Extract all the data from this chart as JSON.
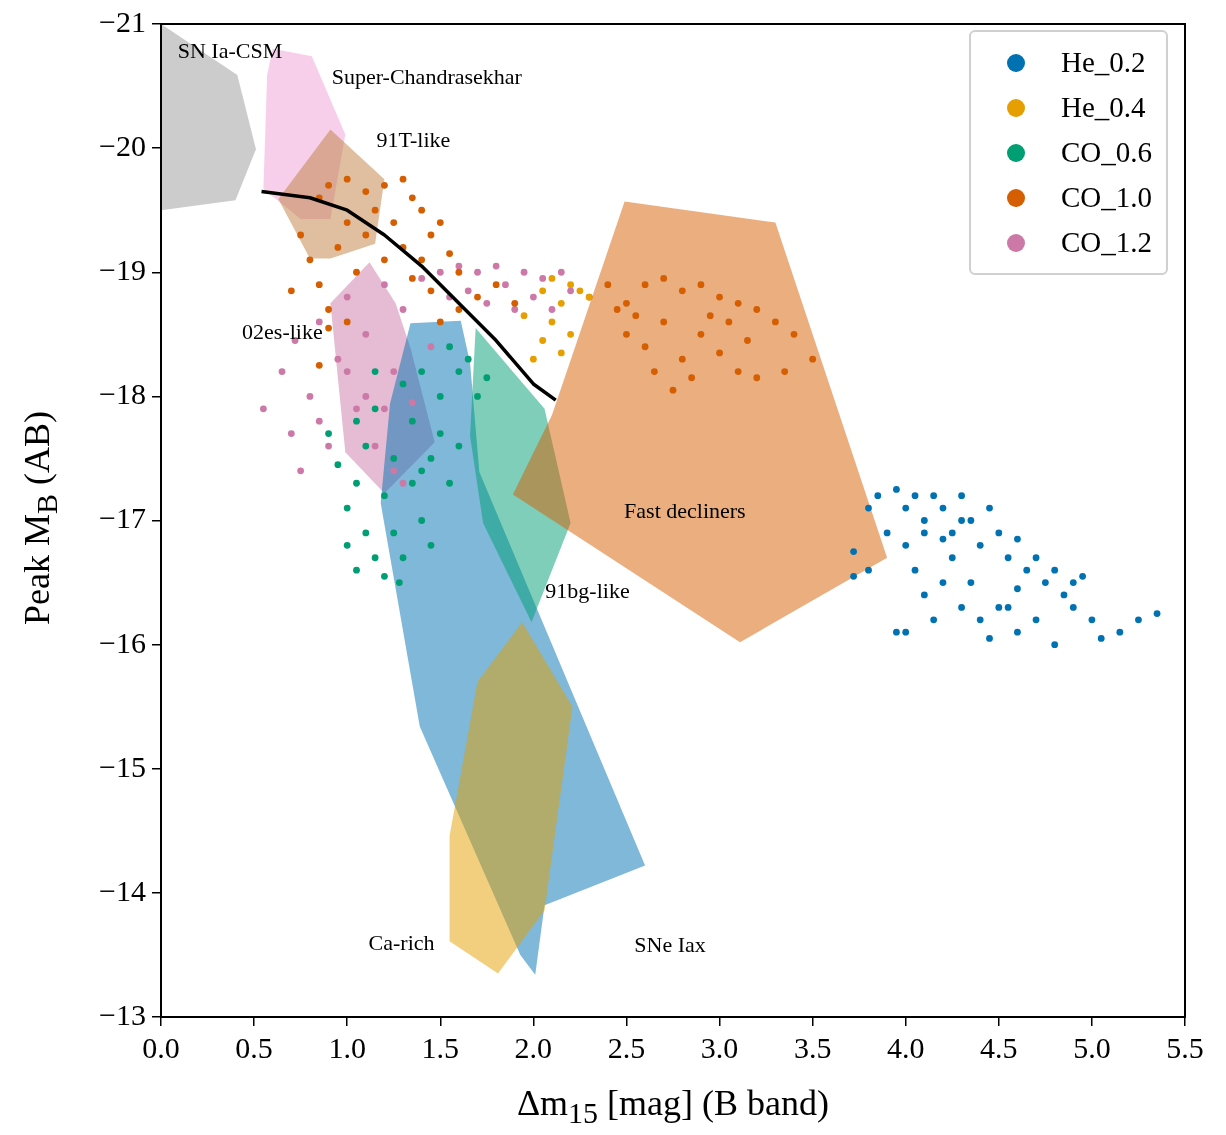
{
  "chart_data": {
    "type": "scatter",
    "xlabel": "Δm$_{15}$ [mag] (B band)",
    "ylabel": "Peak M$_{B}$ (AB)",
    "xlim": [
      0,
      5.5
    ],
    "xticks": [
      {
        "value": 0,
        "label": "0.0"
      },
      {
        "value": 0.5,
        "label": "0.5"
      },
      {
        "value": 1,
        "label": "1.0"
      },
      {
        "value": 1.5,
        "label": "1.5"
      },
      {
        "value": 2,
        "label": "2.0"
      },
      {
        "value": 2.5,
        "label": "2.5"
      },
      {
        "value": 3,
        "label": "3.0"
      },
      {
        "value": 3.5,
        "label": "3.5"
      },
      {
        "value": 4,
        "label": "4.0"
      },
      {
        "value": 4.5,
        "label": "4.5"
      },
      {
        "value": 5,
        "label": "5.0"
      },
      {
        "value": 5.5,
        "label": "5.5"
      }
    ],
    "ylim": [
      -13,
      -21
    ],
    "yticks": [
      {
        "value": -21,
        "label": "−21"
      },
      {
        "value": -20,
        "label": "−20"
      },
      {
        "value": -19,
        "label": "−19"
      },
      {
        "value": -18,
        "label": "−18"
      },
      {
        "value": -17,
        "label": "−17"
      },
      {
        "value": -16,
        "label": "−16"
      },
      {
        "value": -15,
        "label": "−15"
      },
      {
        "value": -14,
        "label": "−14"
      },
      {
        "value": -13,
        "label": "−13"
      }
    ],
    "legend": "top right",
    "marker": "circle",
    "line_style": "solid",
    "series": [
      {
        "name": "SN Ia-CSM",
        "type": "area",
        "marker": "none",
        "color": "#999999",
        "x": [
          0,
          0.41,
          0.51,
          0.4,
          0
        ],
        "values": [
          -21,
          -20.59,
          -19.99,
          -19.58,
          -19.5
        ]
      },
      {
        "name": "Super-Chandrasekhar",
        "type": "area",
        "marker": "none",
        "color": "#f0a0d8",
        "x": [
          0.6,
          0.81,
          0.99,
          0.91,
          0.75,
          0.55,
          0.57
        ],
        "values": [
          -20.8,
          -20.74,
          -20.11,
          -19.43,
          -19.43,
          -19.67,
          -20.59
        ]
      },
      {
        "name": "91T-like",
        "type": "area",
        "marker": "none",
        "color": "#c08040",
        "x": [
          0.91,
          1.2,
          1.15,
          0.91,
          0.8,
          0.63
        ],
        "values": [
          -20.15,
          -19.75,
          -19.23,
          -19.11,
          -19.11,
          -19.59
        ]
      },
      {
        "name": "02es-like",
        "type": "area",
        "marker": "none",
        "color": "#cc79a7",
        "x": [
          1.12,
          1.26,
          1.34,
          1.47,
          1.2,
          0.99,
          0.91
        ],
        "values": [
          -19.08,
          -18.75,
          -18.39,
          -17.63,
          -17.22,
          -17.55,
          -18.75
        ]
      },
      {
        "name": "SNe Iax",
        "type": "area",
        "marker": "none",
        "color": "#0072b2",
        "x": [
          1.34,
          1.61,
          1.66,
          1.71,
          2.6,
          2.06,
          2.01,
          1.93,
          1.39,
          1.18,
          1.23
        ],
        "values": [
          -18.59,
          -18.61,
          -18.27,
          -17.39,
          -14.22,
          -13.9,
          -13.34,
          -13.5,
          -15.34,
          -17.14,
          -17.94
        ]
      },
      {
        "name": "91bg-like",
        "type": "area",
        "marker": "none",
        "color": "#009e73",
        "x": [
          1.69,
          2.06,
          2.2,
          1.99,
          1.73,
          1.66
        ],
        "values": [
          -18.55,
          -17.9,
          -16.98,
          -16.18,
          -16.98,
          -17.68
        ]
      },
      {
        "name": "Fast decliners",
        "type": "area",
        "marker": "none",
        "color": "#d55e00",
        "x": [
          2.49,
          3.3,
          3.9,
          3.11,
          1.89,
          2.1
        ],
        "values": [
          -19.57,
          -19.4,
          -16.7,
          -16.02,
          -17.21,
          -17.85
        ]
      },
      {
        "name": "Ca-rich",
        "type": "area",
        "marker": "none",
        "color": "#e69f00",
        "x": [
          1.94,
          2.21,
          2.06,
          1.81,
          1.55,
          1.55,
          1.7
        ],
        "values": [
          -16.18,
          -15.5,
          -13.86,
          -13.35,
          -13.61,
          -14.46,
          -15.7
        ]
      },
      {
        "name": "He_0.2",
        "color": "#0072b2",
        "x": [
          3.85,
          3.95,
          4.0,
          4.05,
          4.1,
          4.15,
          4.2,
          4.25,
          4.3,
          4.35,
          4.4,
          4.45,
          4.5,
          4.55,
          4.6,
          4.65,
          4.7,
          4.75,
          4.8,
          4.85,
          4.9,
          4.95,
          5.0,
          5.05,
          5.15,
          5.25,
          5.35,
          4.0,
          4.05,
          4.1,
          4.15,
          4.2,
          4.25,
          4.3,
          4.35,
          4.4,
          4.45,
          4.5,
          4.6,
          4.7,
          4.8,
          3.9,
          3.8,
          3.95,
          4.0,
          4.3,
          4.2,
          4.1,
          3.72,
          3.72,
          3.8,
          4.6,
          4.9,
          4.55
        ],
        "values": [
          -17.2,
          -17.25,
          -17.1,
          -17.2,
          -17.0,
          -17.2,
          -17.1,
          -16.9,
          -17.2,
          -17.0,
          -16.8,
          -17.1,
          -16.9,
          -16.7,
          -16.85,
          -16.6,
          -16.7,
          -16.5,
          -16.6,
          -16.4,
          -16.3,
          -16.55,
          -16.2,
          -16.05,
          -16.1,
          -16.2,
          -16.25,
          -16.8,
          -16.6,
          -16.4,
          -16.2,
          -16.5,
          -16.7,
          -16.3,
          -16.5,
          -16.2,
          -16.05,
          -16.3,
          -16.1,
          -16.2,
          -16.0,
          -16.9,
          -16.6,
          -16.1,
          -16.1,
          -17.0,
          -16.85,
          -16.9,
          -16.75,
          -16.55,
          -17.1,
          -16.45,
          -16.5,
          -16.3
        ]
      },
      {
        "name": "He_0.4",
        "color": "#e69f00",
        "x": [
          2.05,
          2.1,
          2.15,
          2.2,
          2.25,
          2.1,
          2.2,
          2.0,
          2.3,
          1.95,
          2.15,
          2.05
        ],
        "values": [
          -18.85,
          -18.95,
          -18.75,
          -18.9,
          -18.85,
          -18.6,
          -18.5,
          -18.3,
          -18.8,
          -18.65,
          -18.35,
          -18.45
        ]
      },
      {
        "name": "CO_0.6",
        "color": "#009e73",
        "x": [
          0.95,
          1.0,
          1.0,
          1.05,
          1.05,
          1.1,
          1.1,
          1.15,
          1.15,
          1.2,
          1.2,
          1.25,
          1.25,
          1.3,
          1.3,
          1.35,
          1.35,
          1.4,
          1.4,
          1.45,
          1.45,
          1.5,
          1.5,
          1.55,
          1.55,
          1.6,
          1.6,
          1.65,
          1.7,
          1.75,
          1.05,
          0.9,
          1.15,
          1.28,
          1.4
        ],
        "values": [
          -17.45,
          -17.1,
          -16.8,
          -16.6,
          -17.3,
          -16.9,
          -17.6,
          -16.7,
          -17.9,
          -17.2,
          -16.55,
          -16.9,
          -17.5,
          -18.1,
          -16.7,
          -17.3,
          -17.8,
          -17.0,
          -18.2,
          -17.5,
          -16.8,
          -17.7,
          -18.0,
          -17.3,
          -18.4,
          -17.6,
          -18.2,
          -18.3,
          -18.0,
          -18.15,
          -17.8,
          -17.7,
          -18.2,
          -16.5,
          -17.4
        ]
      },
      {
        "name": "CO_1.0",
        "color": "#d55e00",
        "x": [
          0.85,
          0.9,
          1.0,
          1.1,
          1.2,
          1.3,
          1.35,
          1.4,
          1.45,
          1.5,
          1.55,
          1.6,
          1.7,
          1.8,
          1.9,
          0.75,
          0.8,
          0.85,
          0.9,
          0.9,
          0.95,
          1.0,
          1.05,
          1.1,
          1.15,
          1.2,
          1.25,
          1.3,
          1.35,
          1.4,
          1.45,
          1.5,
          1.6,
          0.7,
          1.0,
          0.85,
          2.3,
          2.4,
          2.5,
          2.6,
          2.7,
          2.8,
          2.9,
          3.0,
          3.1,
          3.2,
          3.3,
          3.4,
          3.5,
          2.5,
          2.6,
          2.7,
          2.8,
          2.9,
          3.0,
          3.1,
          3.2,
          2.75,
          2.85,
          2.65,
          3.05,
          2.95,
          2.55,
          2.45,
          3.35,
          3.15
        ],
        "values": [
          -19.6,
          -19.7,
          -19.75,
          -19.65,
          -19.7,
          -19.75,
          -19.6,
          -19.5,
          -19.3,
          -19.4,
          -19.15,
          -19.0,
          -18.8,
          -18.9,
          -18.75,
          -19.3,
          -19.1,
          -18.9,
          -18.7,
          -18.55,
          -19.2,
          -19.4,
          -19.0,
          -19.3,
          -19.5,
          -19.1,
          -19.4,
          -19.2,
          -18.95,
          -19.1,
          -18.85,
          -18.6,
          -18.7,
          -18.85,
          -18.6,
          -18.25,
          -18.8,
          -18.9,
          -18.75,
          -18.9,
          -18.95,
          -18.85,
          -18.9,
          -18.8,
          -18.75,
          -18.7,
          -18.6,
          -18.5,
          -18.3,
          -18.5,
          -18.4,
          -18.6,
          -18.3,
          -18.5,
          -18.35,
          -18.2,
          -18.15,
          -18.05,
          -18.15,
          -18.2,
          -18.6,
          -18.65,
          -18.65,
          -18.7,
          -18.2,
          -18.45
        ]
      },
      {
        "name": "CO_1.2",
        "color": "#cc79a7",
        "x": [
          0.55,
          0.65,
          0.7,
          0.75,
          0.8,
          0.85,
          0.9,
          0.95,
          1.0,
          1.05,
          1.1,
          1.15,
          1.2,
          1.25,
          1.3,
          1.35,
          1.4,
          1.45,
          1.5,
          1.55,
          1.6,
          1.65,
          1.7,
          1.75,
          1.8,
          1.85,
          1.9,
          1.95,
          2.0,
          2.05,
          2.1,
          2.15,
          2.2,
          1.25,
          1.3,
          1.2,
          1.0,
          0.85,
          0.72,
          1.1
        ],
        "values": [
          -17.9,
          -18.2,
          -17.7,
          -17.4,
          -18.0,
          -18.6,
          -17.6,
          -18.3,
          -18.8,
          -17.9,
          -18.5,
          -17.6,
          -18.9,
          -18.2,
          -18.7,
          -17.95,
          -18.95,
          -18.4,
          -19.0,
          -18.8,
          -19.05,
          -18.85,
          -19.0,
          -18.75,
          -19.05,
          -18.9,
          -18.7,
          -19.0,
          -18.8,
          -18.95,
          -18.7,
          -19.0,
          -18.85,
          -17.4,
          -17.3,
          -17.9,
          -18.2,
          -17.8,
          -18.45,
          -18.0
        ]
      },
      {
        "type": "line",
        "marker": "none",
        "color": "#000000",
        "x": [
          0.54,
          0.8,
          1.0,
          1.2,
          1.4,
          1.6,
          1.8,
          2.0,
          2.12
        ],
        "values": [
          -19.65,
          -19.6,
          -19.5,
          -19.3,
          -19.05,
          -18.75,
          -18.45,
          -18.1,
          -17.97
        ]
      }
    ]
  }
}
